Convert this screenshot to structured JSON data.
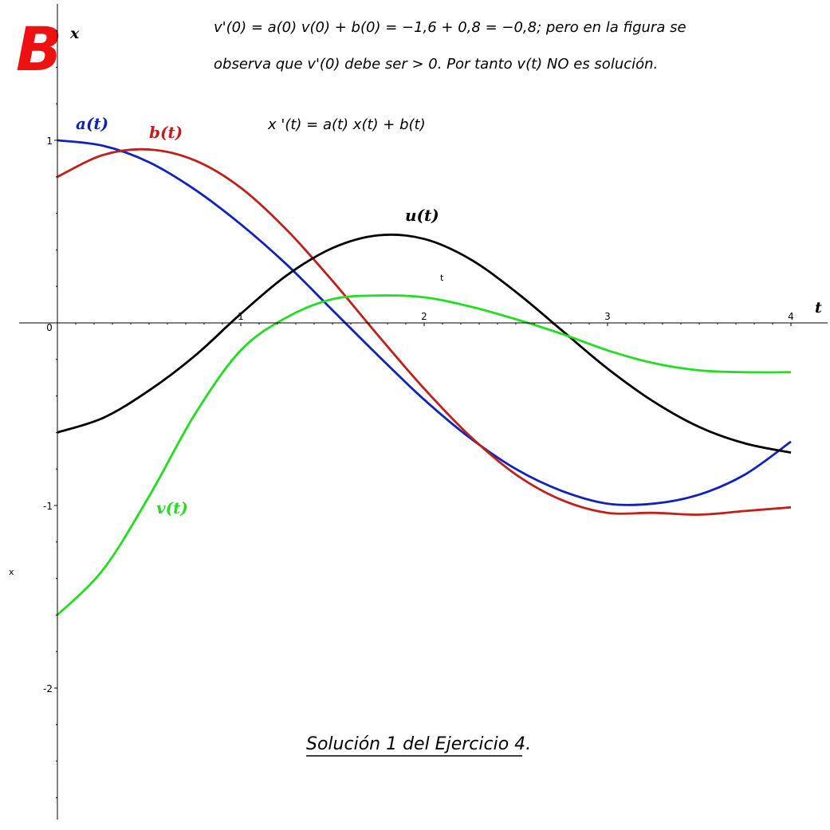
{
  "logo": {
    "text": "B",
    "color": "#ee1111"
  },
  "annotations": {
    "line1": "v'(0) = a(0) v(0) + b(0) = −1,6 + 0,8 = −0,8; pero en la figura se",
    "line2": "observa que v'(0) debe ser > 0. Por tanto v(t) NO es solución.",
    "equation": "x '(t) = a(t) x(t) + b(t)",
    "caption": "Solución 1 del Ejercicio 4."
  },
  "chart_data": {
    "type": "line",
    "xlabel": "t",
    "ylabel": "x",
    "inner_t_label": "t",
    "side_x_label": "x",
    "xlim": [
      0,
      4
    ],
    "ylim": [
      -2.7,
      1.73
    ],
    "x_ticks": [
      {
        "value": 0,
        "label": "0"
      },
      {
        "value": 1,
        "label": "1"
      },
      {
        "value": 2,
        "label": "2"
      },
      {
        "value": 3,
        "label": "3"
      },
      {
        "value": 4,
        "label": "4"
      }
    ],
    "y_ticks": [
      {
        "value": 1,
        "label": "1"
      },
      {
        "value": -1,
        "label": "-1"
      },
      {
        "value": -2,
        "label": "-2"
      }
    ],
    "grid": false,
    "x": [
      0,
      0.25,
      0.5,
      0.75,
      1,
      1.25,
      1.5,
      1.75,
      2,
      2.25,
      2.5,
      2.75,
      3,
      3.25,
      3.5,
      3.75,
      4
    ],
    "series": [
      {
        "name": "a(t)",
        "color": "#1122bb",
        "values": [
          1,
          0.97,
          0.88,
          0.73,
          0.54,
          0.32,
          0.07,
          -0.18,
          -0.42,
          -0.63,
          -0.8,
          -0.92,
          -0.99,
          -0.99,
          -0.94,
          -0.83,
          -0.65
        ]
      },
      {
        "name": "b(t)",
        "color": "#c0201a",
        "values": [
          0.8,
          0.92,
          0.95,
          0.89,
          0.74,
          0.51,
          0.23,
          -0.07,
          -0.36,
          -0.62,
          -0.83,
          -0.97,
          -1.04,
          -1.04,
          -1.05,
          -1.03,
          -1.01
        ]
      },
      {
        "name": "u(t)",
        "color": "#000000",
        "values": [
          -0.6,
          -0.52,
          -0.37,
          -0.18,
          0.05,
          0.26,
          0.41,
          0.48,
          0.46,
          0.35,
          0.17,
          -0.04,
          -0.25,
          -0.43,
          -0.57,
          -0.66,
          -0.71
        ]
      },
      {
        "name": "v(t)",
        "color": "#22dd22",
        "values": [
          -1.6,
          -1.35,
          -0.95,
          -0.5,
          -0.15,
          0.03,
          0.13,
          0.15,
          0.14,
          0.09,
          0.02,
          -0.06,
          -0.15,
          -0.22,
          -0.26,
          -0.27,
          -0.27
        ]
      }
    ]
  }
}
